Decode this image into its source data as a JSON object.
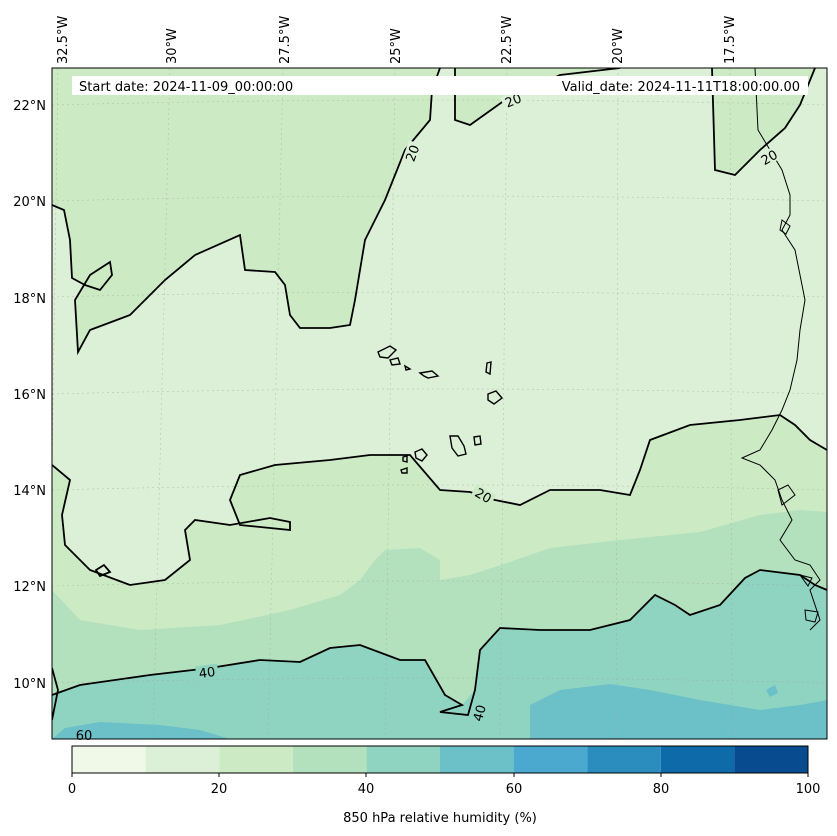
{
  "header": {
    "start_date": "Start date: 2024-11-09_00:00:00",
    "valid_date": "Valid_date: 2024-11-11T18:00:00.00"
  },
  "lat_labels": [
    "22°N",
    "20°N",
    "18°N",
    "16°N",
    "14°N",
    "12°N",
    "10°N"
  ],
  "lon_labels": [
    "32.5°W",
    "30°W",
    "27.5°W",
    "25°W",
    "22.5°W",
    "20°W",
    "17.5°W"
  ],
  "contour_labels": [
    "20",
    "20",
    "20",
    "20",
    "40",
    "40",
    "60"
  ],
  "colorbar": {
    "title": "850 hPa relative humidity (%)",
    "ticks": [
      "0",
      "20",
      "40",
      "60",
      "80",
      "100"
    ],
    "levels": [
      0,
      10,
      20,
      30,
      40,
      50,
      60,
      70,
      80,
      90,
      100
    ],
    "colors": [
      "#f0f9e8",
      "#dbf0d6",
      "#ccebc5",
      "#b3e0bd",
      "#8fd4c0",
      "#6cc0c8",
      "#4ba9d0",
      "#2b8cbe",
      "#0e6aa8",
      "#084c8f"
    ]
  },
  "field_colors": {
    "band_10_20": "#dbf0d6",
    "band_20_30": "#ccebc5",
    "band_30_40": "#b3e0bd",
    "band_40_50": "#8fd4c0",
    "band_50_60": "#6cc0c8"
  }
}
